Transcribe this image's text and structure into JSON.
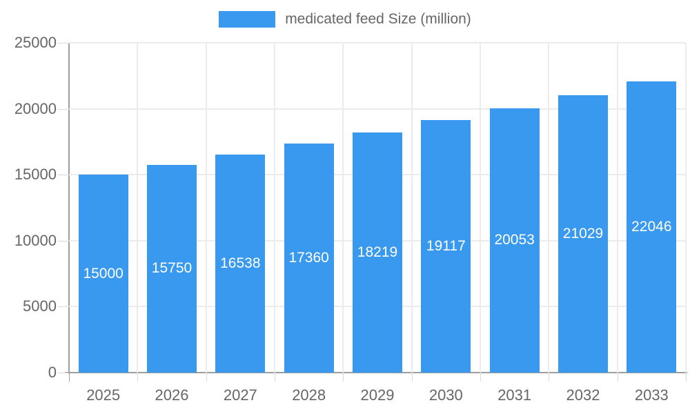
{
  "chart_data": {
    "type": "bar",
    "title": "medicated feed Size (million)",
    "legend_label": "medicated feed Size (million)",
    "categories": [
      "2025",
      "2026",
      "2027",
      "2028",
      "2029",
      "2030",
      "2031",
      "2032",
      "2033"
    ],
    "values": [
      15000,
      15750,
      16538,
      17360,
      18219,
      19117,
      20053,
      21029,
      22046
    ],
    "xlabel": "",
    "ylabel": "",
    "ylim": [
      0,
      25000
    ],
    "yticks": [
      0,
      5000,
      10000,
      15000,
      20000,
      25000
    ],
    "grid": true,
    "legend_position": "top-center",
    "bar_labels_inside": true
  },
  "colors": {
    "bar": "#3899ee",
    "bar_label": "#ffffff",
    "axis_line": "#9e9e9e",
    "gridline": "#ebebeb",
    "tick_mark": "#d9d9d9",
    "text": "#666666",
    "background": "#ffffff"
  }
}
